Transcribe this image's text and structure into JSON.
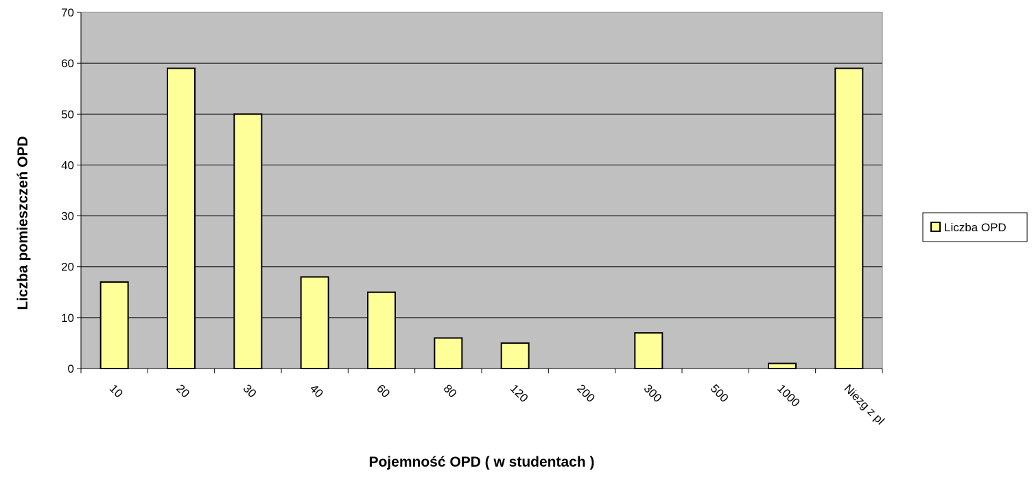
{
  "chart_data": {
    "type": "bar",
    "x_label": "Pojemność OPD ( w studentach )",
    "y_label": "Liczba pomieszczeń OPD",
    "categories": [
      "10",
      "20",
      "30",
      "40",
      "60",
      "80",
      "120",
      "200",
      "300",
      "500",
      "1000",
      "Niezg z pl"
    ],
    "series": [
      {
        "name": "Liczba OPD",
        "color": "#ffff99",
        "values": [
          17,
          59,
          50,
          18,
          15,
          6,
          5,
          0,
          7,
          0,
          1,
          59
        ]
      }
    ],
    "ylim": [
      0,
      70
    ],
    "yticks": [
      0,
      10,
      20,
      30,
      40,
      50,
      60,
      70
    ],
    "grid": true,
    "legend": "right"
  }
}
